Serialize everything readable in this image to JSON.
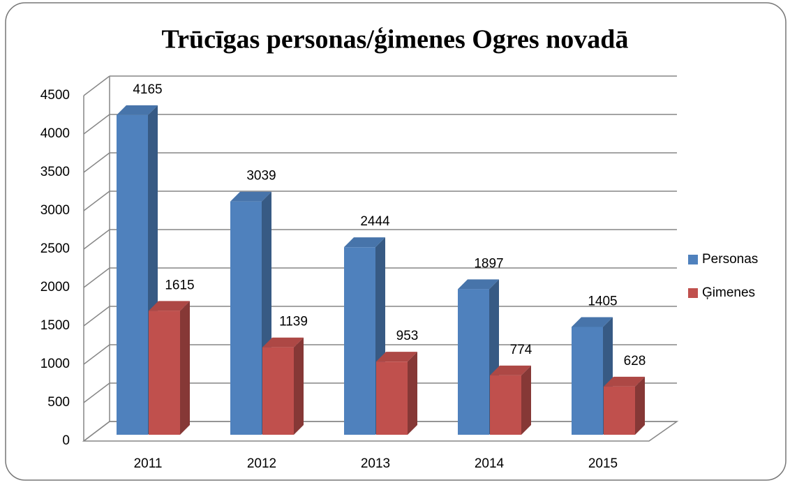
{
  "chart_data": {
    "type": "bar3d",
    "title": "Trūcīgas personas/ģimenes Ogres novadā",
    "categories": [
      "2011",
      "2012",
      "2013",
      "2014",
      "2015"
    ],
    "series": [
      {
        "name": "Personas",
        "color": "#4f81bd",
        "values": [
          4165,
          3039,
          2444,
          1897,
          1405
        ]
      },
      {
        "name": "Ģimenes",
        "color": "#c0504d",
        "values": [
          1615,
          1139,
          953,
          774,
          628
        ]
      }
    ],
    "ylim": [
      0,
      4500
    ],
    "yticks": [
      0,
      500,
      1000,
      1500,
      2000,
      2500,
      3000,
      3500,
      4000,
      4500
    ],
    "grid": true,
    "legend": "right"
  }
}
